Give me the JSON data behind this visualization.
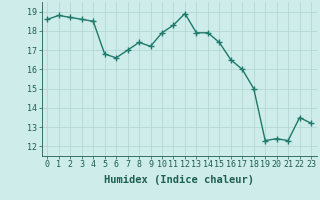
{
  "x": [
    0,
    1,
    2,
    3,
    4,
    5,
    6,
    7,
    8,
    9,
    10,
    11,
    12,
    13,
    14,
    15,
    16,
    17,
    18,
    19,
    20,
    21,
    22,
    23
  ],
  "y": [
    18.6,
    18.8,
    18.7,
    18.6,
    18.5,
    16.8,
    16.6,
    17.0,
    17.4,
    17.2,
    17.9,
    18.3,
    18.9,
    17.9,
    17.9,
    17.4,
    16.5,
    16.0,
    15.0,
    12.3,
    12.4,
    12.3,
    13.5,
    13.2
  ],
  "line_color": "#1e7a6a",
  "marker": "+",
  "marker_size": 4,
  "bg_color": "#ceecea",
  "grid_color": "#b0d4d0",
  "xlabel": "Humidex (Indice chaleur)",
  "ylim": [
    11.5,
    19.5
  ],
  "xlim": [
    -0.5,
    23.5
  ],
  "yticks": [
    12,
    13,
    14,
    15,
    16,
    17,
    18,
    19
  ],
  "xticks": [
    0,
    1,
    2,
    3,
    4,
    5,
    6,
    7,
    8,
    9,
    10,
    11,
    12,
    13,
    14,
    15,
    16,
    17,
    18,
    19,
    20,
    21,
    22,
    23
  ],
  "xtick_labels": [
    "0",
    "1",
    "2",
    "3",
    "4",
    "5",
    "6",
    "7",
    "8",
    "9",
    "10",
    "11",
    "12",
    "13",
    "14",
    "15",
    "16",
    "17",
    "18",
    "19",
    "20",
    "21",
    "22",
    "23"
  ],
  "label_color": "#1e5f52",
  "tick_color": "#1e5f52",
  "linewidth": 1.0,
  "font_size": 6,
  "xlabel_fontsize": 7.5
}
